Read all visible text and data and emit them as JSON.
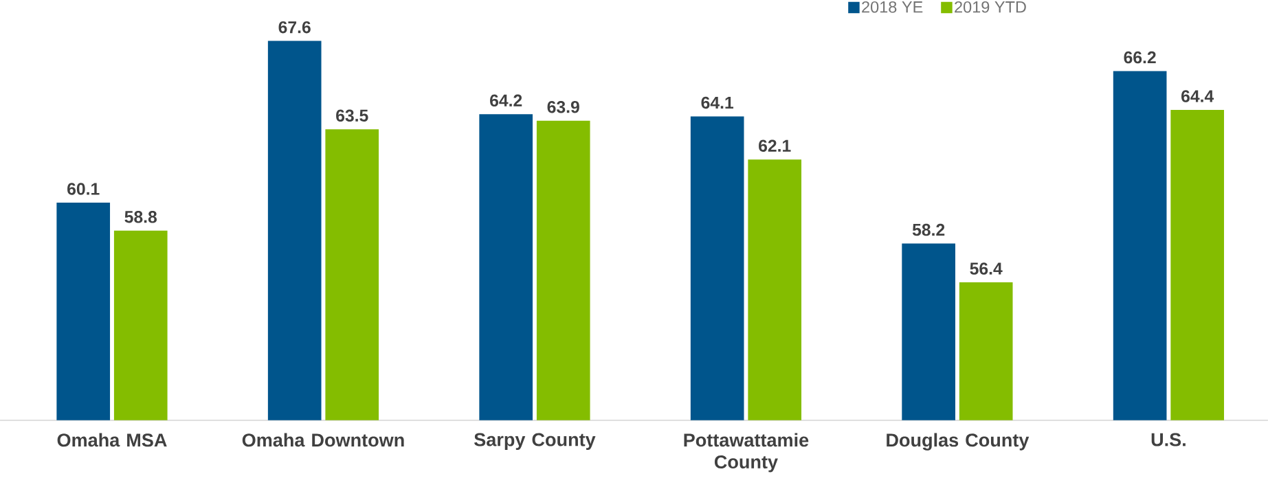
{
  "chart_data": {
    "type": "bar",
    "categories": [
      "Omaha MSA",
      "Omaha Downtown",
      "Sarpy County",
      "Pottawattamie County",
      "Douglas County",
      "U.S."
    ],
    "series": [
      {
        "name": "2018 YE",
        "color": "#00558c",
        "values": [
          60.1,
          67.6,
          64.2,
          64.1,
          58.2,
          66.2
        ]
      },
      {
        "name": "2019 YTD",
        "color": "#84bd00",
        "values": [
          58.8,
          63.5,
          63.9,
          62.1,
          56.4,
          64.4
        ]
      }
    ],
    "ylim": [
      50,
      69.5
    ],
    "data_labels": true,
    "legend": "top right"
  }
}
